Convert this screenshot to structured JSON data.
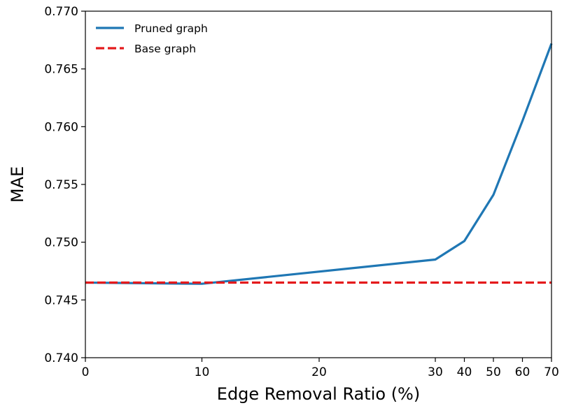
{
  "chart_data": {
    "type": "line",
    "title": "",
    "xlabel": "Edge Removal Ratio (%)",
    "ylabel": "MAE",
    "x_ticks": [
      "0",
      "10",
      "20",
      "30",
      "40",
      "50",
      "60",
      "70"
    ],
    "y_ticks": [
      "0.740",
      "0.745",
      "0.750",
      "0.755",
      "0.760",
      "0.765",
      "0.770"
    ],
    "ylim": [
      0.74,
      0.77
    ],
    "grid": false,
    "legend_position": "top-left",
    "series": [
      {
        "name": "Pruned graph",
        "style": "solid",
        "color": "#1f77b4",
        "points": [
          {
            "x": 0,
            "y": 0.7465
          },
          {
            "x": 10,
            "y": 0.7464
          },
          {
            "x": 30,
            "y": 0.7485
          },
          {
            "x": 40,
            "y": 0.7501
          },
          {
            "x": 50,
            "y": 0.7541
          },
          {
            "x": 60,
            "y": 0.7605
          },
          {
            "x": 70,
            "y": 0.7672
          }
        ]
      },
      {
        "name": "Base graph",
        "style": "dashed",
        "color": "#e41a1c",
        "points": [
          {
            "x": 0,
            "y": 0.7465
          },
          {
            "x": 70,
            "y": 0.7465
          }
        ]
      }
    ]
  }
}
